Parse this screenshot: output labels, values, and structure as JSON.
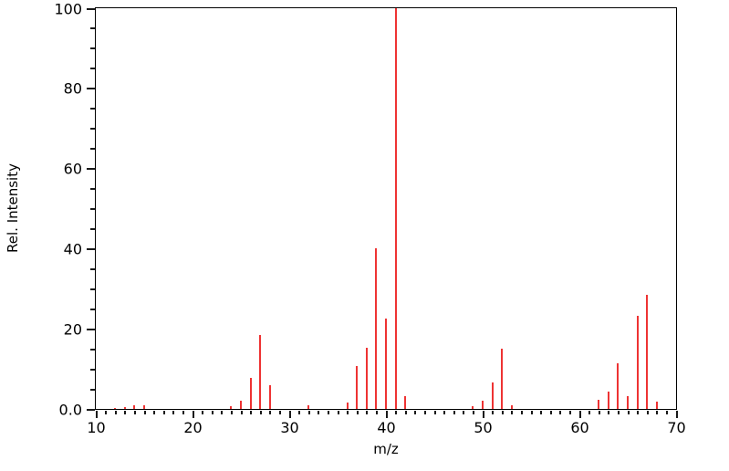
{
  "chart_data": {
    "type": "bar",
    "subtype": "mass-spectrum",
    "title": "",
    "xlabel": "m/z",
    "ylabel": "Rel. Intensity",
    "xlim": [
      10,
      70
    ],
    "ylim": [
      0,
      100
    ],
    "x_major_ticks": [
      10,
      20,
      30,
      40,
      50,
      60,
      70
    ],
    "x_major_tick_labels": [
      "10",
      "20",
      "30",
      "40",
      "50",
      "60",
      "70"
    ],
    "x_minor_tick_step": 1,
    "y_major_ticks": [
      0,
      20,
      40,
      60,
      80,
      100
    ],
    "y_major_tick_labels": [
      "0.0",
      "20",
      "40",
      "60",
      "80",
      "100"
    ],
    "y_minor_tick_step": 5,
    "grid": false,
    "legend": false,
    "bar_color": "#ee3333",
    "axis_color": "#000000",
    "peaks": [
      {
        "mz": 12,
        "ri": 0.3
      },
      {
        "mz": 13,
        "ri": 0.5
      },
      {
        "mz": 14,
        "ri": 1.0
      },
      {
        "mz": 15,
        "ri": 0.9
      },
      {
        "mz": 24,
        "ri": 0.7
      },
      {
        "mz": 25,
        "ri": 2.0
      },
      {
        "mz": 26,
        "ri": 7.7
      },
      {
        "mz": 27,
        "ri": 18.5
      },
      {
        "mz": 28,
        "ri": 5.9
      },
      {
        "mz": 32,
        "ri": 0.9
      },
      {
        "mz": 36,
        "ri": 1.7
      },
      {
        "mz": 37,
        "ri": 10.8
      },
      {
        "mz": 38,
        "ri": 15.3
      },
      {
        "mz": 39,
        "ri": 40.0
      },
      {
        "mz": 40,
        "ri": 22.5
      },
      {
        "mz": 41,
        "ri": 100.0
      },
      {
        "mz": 42,
        "ri": 3.2
      },
      {
        "mz": 49,
        "ri": 0.8
      },
      {
        "mz": 50,
        "ri": 2.0
      },
      {
        "mz": 51,
        "ri": 6.6
      },
      {
        "mz": 52,
        "ri": 15.0
      },
      {
        "mz": 53,
        "ri": 1.0
      },
      {
        "mz": 62,
        "ri": 2.2
      },
      {
        "mz": 63,
        "ri": 4.4
      },
      {
        "mz": 64,
        "ri": 11.5
      },
      {
        "mz": 65,
        "ri": 3.3
      },
      {
        "mz": 66,
        "ri": 23.3
      },
      {
        "mz": 67,
        "ri": 28.4
      },
      {
        "mz": 68,
        "ri": 1.8
      }
    ]
  }
}
